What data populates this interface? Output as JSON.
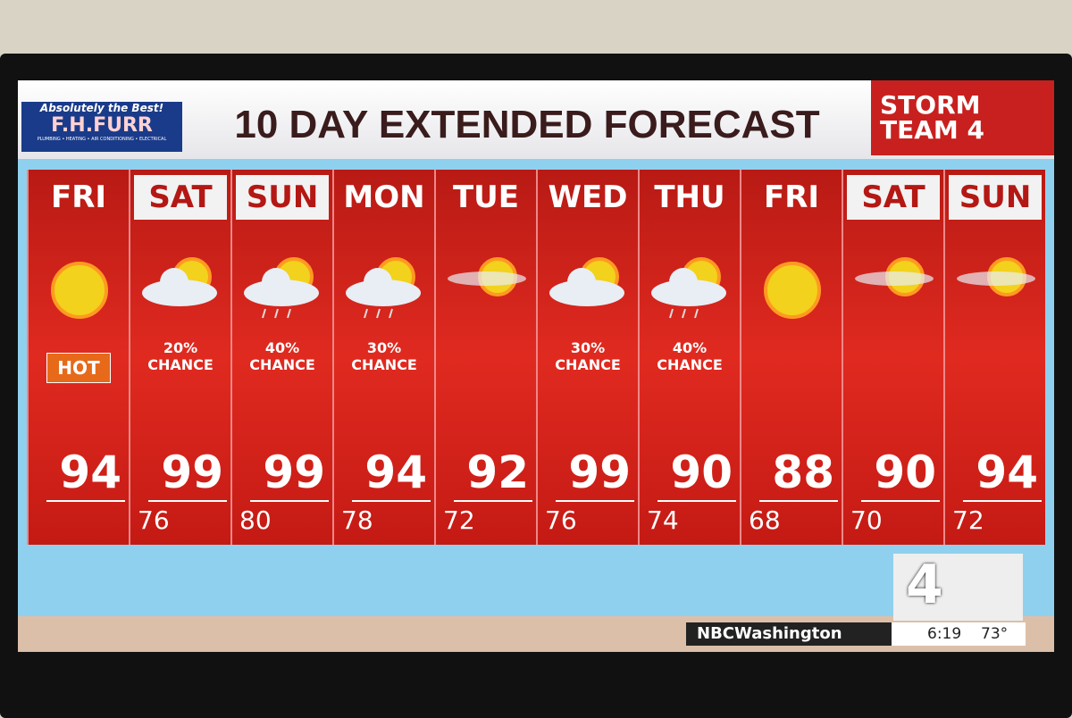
{
  "header": {
    "sponsor": {
      "tagline": "Absolutely the Best!",
      "name": "F.H.FURR",
      "services": "PLUMBING • HEATING • AIR CONDITIONING • ELECTRICAL"
    },
    "title": "10 DAY EXTENDED FORECAST",
    "brand": "STORM TEAM 4"
  },
  "days": [
    {
      "day": "FRI",
      "high": 94,
      "badge": "HOT"
    },
    {
      "day": "SAT",
      "high": 99,
      "low": 76,
      "note": [
        "20%",
        "CHANCE"
      ]
    },
    {
      "day": "SUN",
      "high": 99,
      "low": 80,
      "note": [
        "40%",
        "CHANCE"
      ]
    },
    {
      "day": "MON",
      "high": 94,
      "low": 78,
      "note": [
        "30%",
        "CHANCE"
      ]
    },
    {
      "day": "TUE",
      "high": 92,
      "low": 72
    },
    {
      "day": "WED",
      "high": 99,
      "low": 76,
      "note": [
        "30%",
        "CHANCE"
      ]
    },
    {
      "day": "THU",
      "high": 90,
      "low": 74,
      "note": [
        "40%",
        "CHANCE"
      ]
    },
    {
      "day": "FRI",
      "high": 88,
      "low": 68
    },
    {
      "day": "SAT",
      "high": 90,
      "low": 70
    },
    {
      "day": "SUN",
      "high": 94,
      "low": 72
    }
  ],
  "footer": {
    "logo": "4",
    "social": "NBCWashington",
    "time": "6:19",
    "temperature": "73°"
  }
}
